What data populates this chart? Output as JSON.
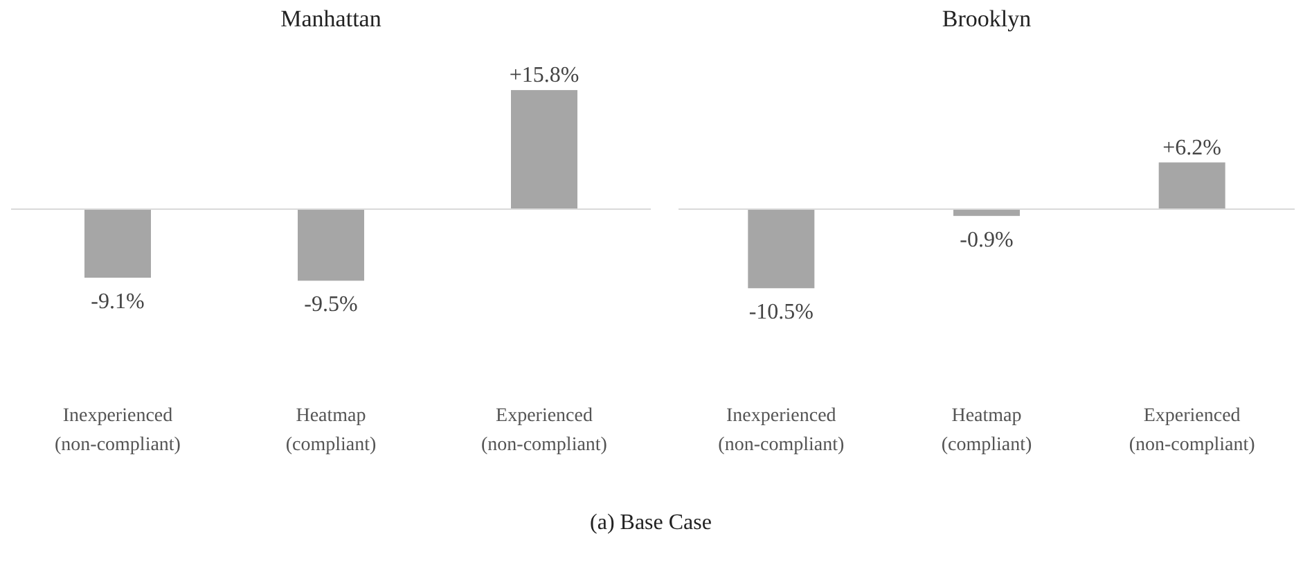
{
  "chart_data": [
    {
      "type": "bar",
      "title": "Manhattan",
      "categories": [
        "Inexperienced\n(non-compliant)",
        "Heatmap\n(compliant)",
        "Experienced\n(non-compliant)"
      ],
      "values": [
        -9.1,
        -9.5,
        15.8
      ],
      "value_labels": [
        "-9.1%",
        "-9.5%",
        "+15.8%"
      ],
      "color": "#a6a6a6",
      "relative": false,
      "annotations": [
        "(a) Base Case"
      ]
    },
    {
      "type": "bar",
      "title": "Brooklyn",
      "categories": [
        "Inexperienced\n(non-compliant)",
        "Heatmap\n(compliant)",
        "Experienced\n(non-compliant)"
      ],
      "values": [
        -10.5,
        -0.9,
        6.2
      ],
      "value_labels": [
        "-10.5%",
        "-0.9%",
        "+6.2%"
      ],
      "color": "#a6a6a6"
    }
  ]
}
